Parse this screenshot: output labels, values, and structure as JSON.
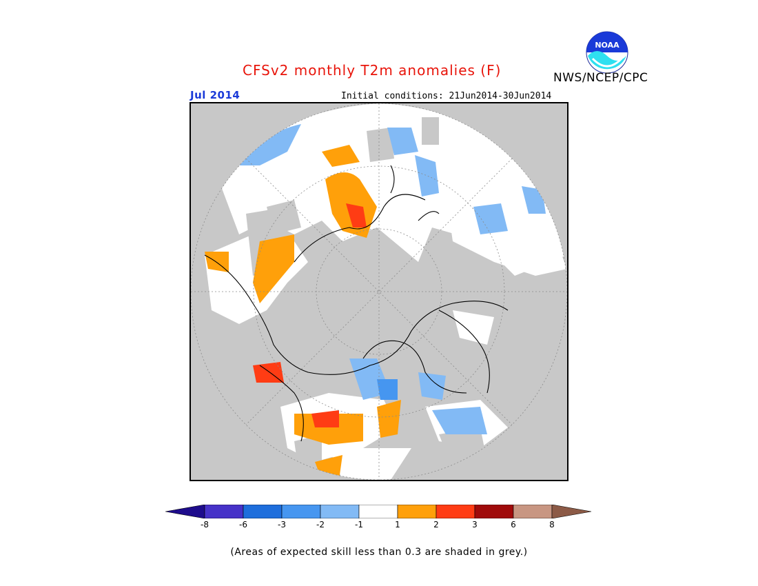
{
  "title": "CFSv2 monthly T2m anomalies (F)",
  "valid_month": "Jul 2014",
  "initial_conditions": "Initial conditions: 21Jun2014-30Jun2014",
  "organization": "NWS/NCEP/CPC",
  "logo_text": "NOAA",
  "footnote": "(Areas of expected skill less than 0.3 are shaded in grey.)",
  "map": {
    "projection": "north-polar-stereographic",
    "low_skill_color": "#c8c8c8",
    "near_normal_color": "#ffffff"
  },
  "colorbar": {
    "colors": [
      "#1e0c8c",
      "#4632c8",
      "#1e6edc",
      "#4696f0",
      "#82baf5",
      "#ffffff",
      "#ffa00a",
      "#ff3c14",
      "#a00a0a",
      "#c89682",
      "#8c5a46"
    ],
    "labels": [
      "-8",
      "-6",
      "-3",
      "-2",
      "-1",
      "1",
      "2",
      "3",
      "6",
      "8"
    ]
  }
}
